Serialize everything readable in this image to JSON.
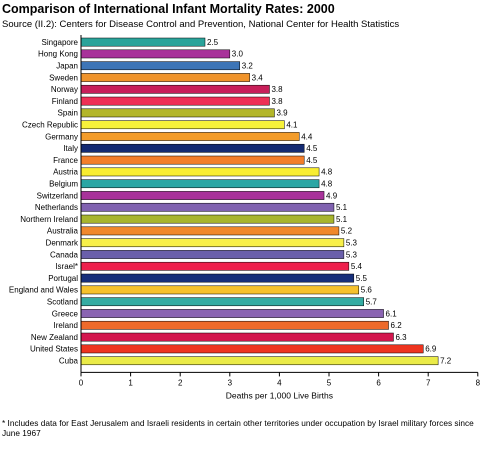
{
  "title": "Comparison of International Infant Mortality Rates: 2000",
  "source": "Source (II.2): Centers for Disease Control and Prevention, National Center for Health Statistics",
  "footnote": "* Includes data for East Jerusalem and Israeli residents in certain other territories under occupation by Israel military forces since June 1967",
  "chart_data": {
    "type": "bar",
    "orientation": "horizontal",
    "title": "Comparison of International Infant Mortality Rates: 2000",
    "xlabel": "Deaths per 1,000 Live Births",
    "ylabel": "",
    "xlim": [
      0,
      8
    ],
    "xticks": [
      0,
      1,
      2,
      3,
      4,
      5,
      6,
      7,
      8
    ],
    "grid": false,
    "legend": "none",
    "categories": [
      "Singapore",
      "Hong Kong",
      "Japan",
      "Sweden",
      "Norway",
      "Finland",
      "Spain",
      "Czech Republic",
      "Germany",
      "Italy",
      "France",
      "Austria",
      "Belgium",
      "Switzerland",
      "Netherlands",
      "Northern Ireland",
      "Australia",
      "Denmark",
      "Canada",
      "Israel*",
      "Portugal",
      "England and Wales",
      "Scotland",
      "Greece",
      "Ireland",
      "New Zealand",
      "United States",
      "Cuba"
    ],
    "values": [
      2.5,
      3.0,
      3.2,
      3.4,
      3.8,
      3.8,
      3.9,
      4.1,
      4.4,
      4.5,
      4.5,
      4.8,
      4.8,
      4.9,
      5.1,
      5.1,
      5.2,
      5.3,
      5.3,
      5.4,
      5.5,
      5.6,
      5.7,
      6.1,
      6.2,
      6.3,
      6.9,
      7.2
    ],
    "value_labels": [
      "2.5",
      "3.0",
      "3.2",
      "3.4",
      "3.8",
      "3.8",
      "3.9",
      "4.1",
      "4.4",
      "4.5",
      "4.5",
      "4.8",
      "4.8",
      "4.9",
      "5.1",
      "5.1",
      "5.2",
      "5.3",
      "5.3",
      "5.4",
      "5.5",
      "5.6",
      "5.7",
      "6.1",
      "6.2",
      "6.3",
      "6.9",
      "7.2"
    ],
    "colors": [
      "#2aa39a",
      "#a8329a",
      "#3d75b7",
      "#f0932a",
      "#c81f5a",
      "#ee2f56",
      "#b3b62a",
      "#f7f23a",
      "#f39c2a",
      "#142a72",
      "#f37e2b",
      "#f8ed31",
      "#2aa6a4",
      "#a8329a",
      "#8062b0",
      "#a8b52e",
      "#f0882c",
      "#f8f049",
      "#6a5fab",
      "#ee1f4c",
      "#172e7a",
      "#f6c12d",
      "#34aca3",
      "#8a64b2",
      "#ee6a2b",
      "#d3174e",
      "#ee341f",
      "#eaeb48"
    ]
  }
}
